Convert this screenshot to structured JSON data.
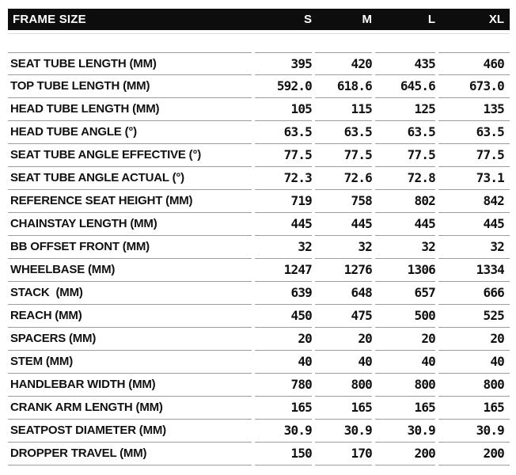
{
  "chart_data": {
    "type": "table",
    "title": "FRAME SIZE",
    "columns": [
      "S",
      "M",
      "L",
      "XL"
    ],
    "rows": [
      {
        "label": "SEAT TUBE LENGTH (MM)",
        "values": [
          "395",
          "420",
          "435",
          "460"
        ]
      },
      {
        "label": "TOP TUBE LENGTH (MM)",
        "values": [
          "592.0",
          "618.6",
          "645.6",
          "673.0"
        ]
      },
      {
        "label": "HEAD TUBE LENGTH (MM)",
        "values": [
          "105",
          "115",
          "125",
          "135"
        ]
      },
      {
        "label": "HEAD TUBE ANGLE (°)",
        "values": [
          "63.5",
          "63.5",
          "63.5",
          "63.5"
        ]
      },
      {
        "label": "SEAT TUBE ANGLE EFFECTIVE (°)",
        "values": [
          "77.5",
          "77.5",
          "77.5",
          "77.5"
        ]
      },
      {
        "label": "SEAT TUBE ANGLE ACTUAL (°)",
        "values": [
          "72.3",
          "72.6",
          "72.8",
          "73.1"
        ]
      },
      {
        "label": "REFERENCE SEAT HEIGHT (MM)",
        "values": [
          "719",
          "758",
          "802",
          "842"
        ]
      },
      {
        "label": "CHAINSTAY LENGTH (MM)",
        "values": [
          "445",
          "445",
          "445",
          "445"
        ]
      },
      {
        "label": "BB OFFSET FRONT (MM)",
        "values": [
          "32",
          "32",
          "32",
          "32"
        ]
      },
      {
        "label": "WHEELBASE (MM)",
        "values": [
          "1247",
          "1276",
          "1306",
          "1334"
        ]
      },
      {
        "label": "STACK  (MM)",
        "values": [
          "639",
          "648",
          "657",
          "666"
        ]
      },
      {
        "label": "REACH (MM)",
        "values": [
          "450",
          "475",
          "500",
          "525"
        ]
      },
      {
        "label": "SPACERS (MM)",
        "values": [
          "20",
          "20",
          "20",
          "20"
        ]
      },
      {
        "label": "STEM (MM)",
        "values": [
          "40",
          "40",
          "40",
          "40"
        ]
      },
      {
        "label": "HANDLEBAR WIDTH (MM)",
        "values": [
          "780",
          "800",
          "800",
          "800"
        ]
      },
      {
        "label": "CRANK ARM LENGTH (MM)",
        "values": [
          "165",
          "165",
          "165",
          "165"
        ]
      },
      {
        "label": "SEATPOST DIAMETER (MM)",
        "values": [
          "30.9",
          "30.9",
          "30.9",
          "30.9"
        ]
      },
      {
        "label": "DROPPER TRAVEL (MM)",
        "values": [
          "150",
          "170",
          "200",
          "200"
        ]
      }
    ]
  },
  "colors": {
    "header_bg": "#0d0d0d",
    "header_text": "#ffffff",
    "body_text": "#111111",
    "divider": "#9c9c9c",
    "hairline": "#dcdcdc",
    "background": "#ffffff"
  }
}
